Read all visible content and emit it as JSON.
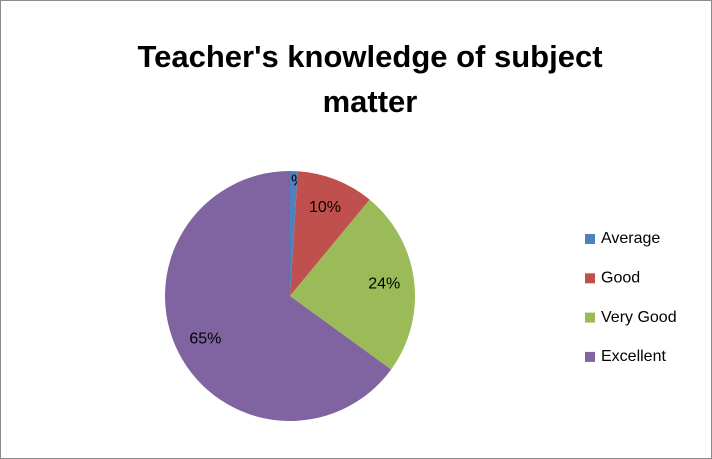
{
  "chart_data": {
    "type": "pie",
    "title": "Teacher's knowledge of subject matter",
    "categories": [
      "Average",
      "Good",
      "Very Good",
      "Excellent"
    ],
    "values": [
      1,
      10,
      24,
      65
    ],
    "value_labels": [
      "1%",
      "10%",
      "24%",
      "65%"
    ],
    "colors": [
      "#4f81bd",
      "#c0504d",
      "#9bbb59",
      "#8064a2"
    ],
    "legend": "right"
  }
}
